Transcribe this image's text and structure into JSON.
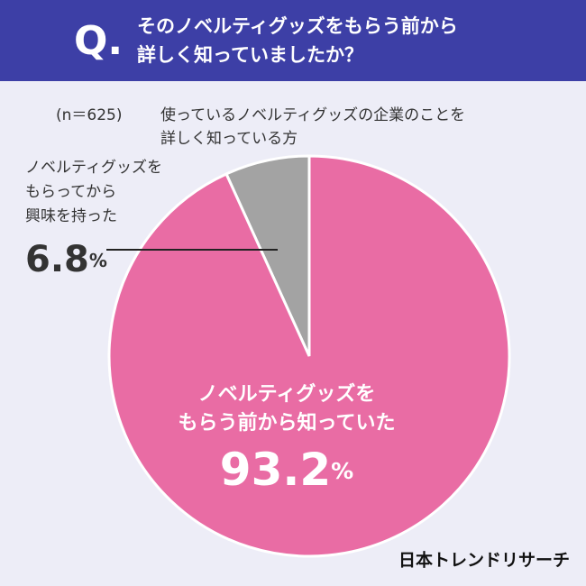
{
  "chart_data": {
    "type": "pie",
    "title_prefix": "Q.",
    "title_lines": [
      "そのノベルティグッズをもらう前から",
      "詳しく知っていましたか？"
    ],
    "sample_size": "(n＝625)",
    "subtitle_lines": [
      "使っているノベルティグッズの企業のことを",
      "詳しく知っている方"
    ],
    "categories": [
      [
        "ノベルティグッズを",
        "もらってから",
        "興味を持った"
      ],
      [
        "ノベルティグッズを",
        "もらう前から知っていた"
      ]
    ],
    "values": [
      6.8,
      93.2
    ],
    "unit": "%",
    "colors": [
      "#a3a3a3",
      "#e96ca4"
    ],
    "source": "日本トレンドリサーチ"
  }
}
